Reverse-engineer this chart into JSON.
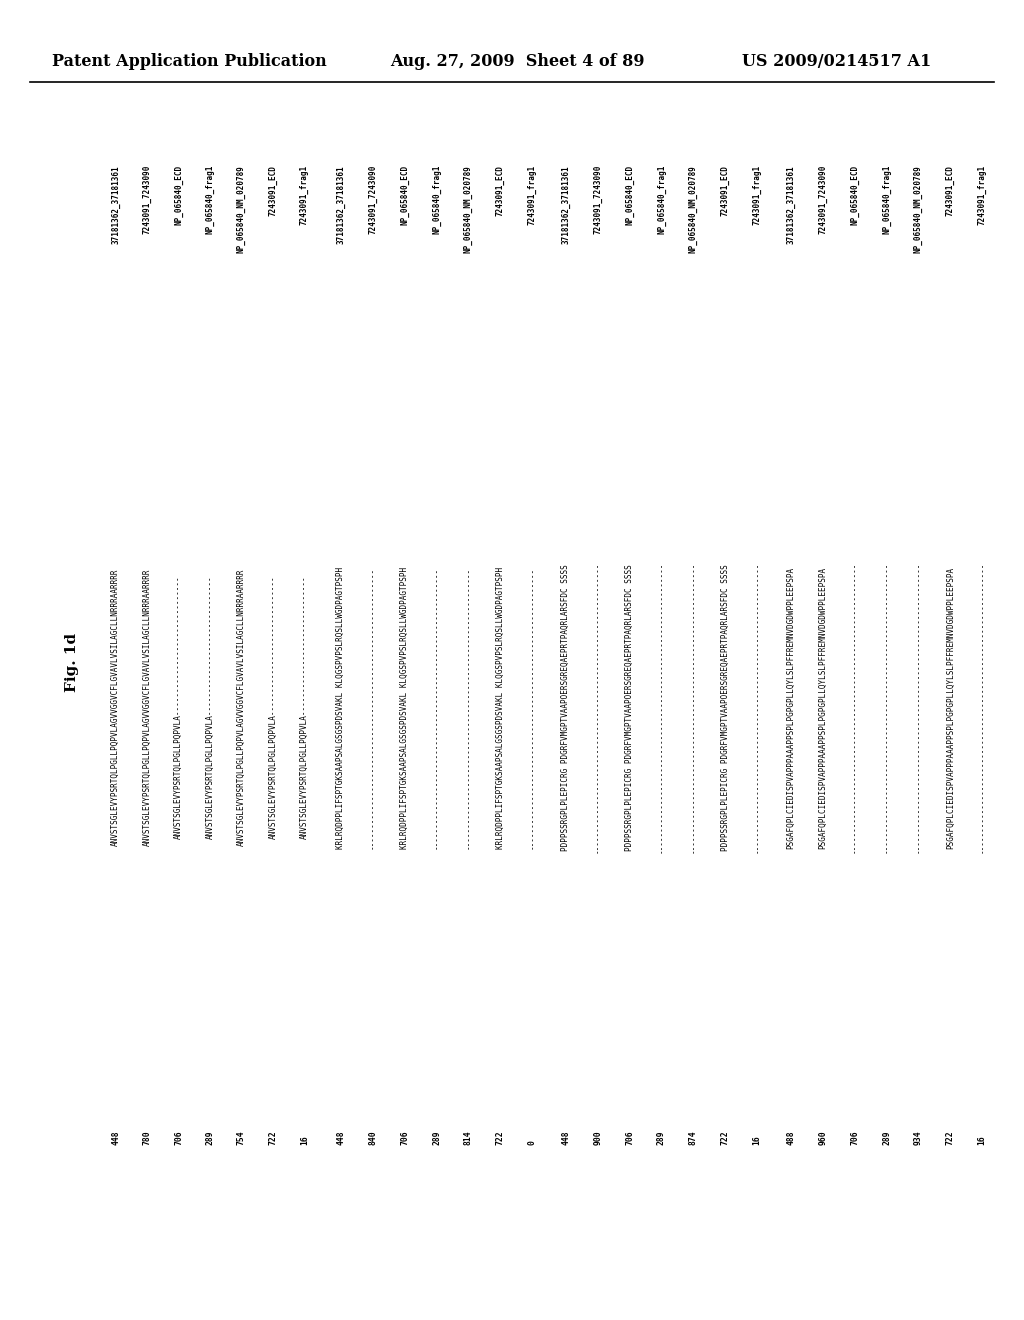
{
  "header_left": "Patent Application Publication",
  "header_mid": "Aug. 27, 2009  Sheet 4 of 89",
  "header_right": "US 2009/0214517 A1",
  "fig_label": "Fig. 1d",
  "background_color": "#ffffff",
  "header_fontsize": 11.5,
  "blocks": [
    {
      "ids": [
        "37181362_37181361",
        "7243091_7243090",
        "NP_065840_ECD",
        "NP_065840_frag1",
        "NP_065840_NM_020789",
        "7243091_ECD",
        "7243091_frag1"
      ],
      "seqs": [
        "ANVSTSGLEVYPSRTQLPGLLPQPVLAGVVGGVCFLGVAVLVSILAGCLLNRRRAARRRR",
        "ANVSTSGLEVYPSRTQLPGLLPQPVLAGVVGGVCFLGVAVLVSILAGCLLNRRRAARRRR",
        "ANVSTSGLEVYPSRTQLPGLLPQPVLA------------------------------",
        "ANVSTSGLEVYPSRTQLPGLLPQPVLA------------------------------",
        "ANVSTSGLEVYPSRTQLPGLLPQPVLAGVVGGVCFLGVAVLVSILAGCLLNRRRAARRRR",
        "ANVSTSGLEVYPSRTQLPGLLPQPVLA------------------------------",
        "ANVSTSGLEVYPSRTQLPGLLPQPVLA------------------------------"
      ],
      "nums": [
        "448",
        "780",
        "706",
        "289",
        "754",
        "722",
        "16"
      ]
    },
    {
      "ids": [
        "37181362_37181361",
        "7243091_7243090",
        "NP_065840_ECD",
        "NP_065840_frag1",
        "NP_065840_NM_020789",
        "7243091_ECD",
        "7243091_frag1"
      ],
      "seqs": [
        "KRLRQDPPLIFSPTGKSAAPSALGSGSPDSVAKL KLQGSPVPSLRQSLLWGDPAGTPSPH",
        "-------------------------------------------------------------",
        "KRLRQDPPLIFSPTGKSAAPSALGSGSPDSVAKL KLQGSPVPSLRQSLLWGDPAGTPSPH",
        "-------------------------------------------------------------",
        "-------------------------------------------------------------",
        "KRLRQDPPLIFSPTGKSAAPSALGSGSPDSVAKL KLQGSPVPSLRQSLLWGDPAGTPSPH",
        "-------------------------------------------------------------"
      ],
      "nums": [
        "448",
        "840",
        "706",
        "289",
        "814",
        "722",
        "0"
      ]
    },
    {
      "ids": [
        "37181362_37181361",
        "7243091_7243090",
        "NP_065840_ECD",
        "NP_065840_frag1",
        "NP_065840_NM_020789",
        "7243091_ECD",
        "7243091_frag1"
      ],
      "seqs": [
        "PDPPSSRGPLPLEPICRG PDGRFVMGPTVAAPOERSGREQAEPRTPAQRLARSFDC SSSS",
        "---------------------------------------------------------------",
        "PDPPSSRGPLPLEPICRG PDGRFVMGPTVAAPOERSGREQAEPRTPAQRLARSFDC SSSS",
        "---------------------------------------------------------------",
        "---------------------------------------------------------------",
        "PDPPSSRGPLPLEPICRG PDGRFVMGPTVAAPOERSGREQAEPRTPAQRLARSFDC SSSS",
        "---------------------------------------------------------------"
      ],
      "nums": [
        "448",
        "900",
        "706",
        "289",
        "874",
        "722",
        "16"
      ]
    },
    {
      "ids": [
        "37181362_37181361",
        "7243091_7243090",
        "NP_065840_ECD",
        "NP_065840_frag1",
        "NP_065840_NM_020789",
        "7243091_ECD",
        "7243091_frag1"
      ],
      "seqs": [
        "PSGAFQPLCIEDISPVAPPPAAAPPSPLPGPGPLLQYLSLPFFREMNVDGDWPPLEEPSPA",
        "PSGAFQPLCIEDISPVAPPPAAAPPSPLPGPGPLLQYLSLPFFREMNVDGDWPPLEEPSPA",
        "---------------------------------------------------------------",
        "---------------------------------------------------------------",
        "---------------------------------------------------------------",
        "PSGAFQPLCIEDISPVAPPPAAAPPSPLPGPGPLLQYLSLPFFREMNVDGDWPPLEEPSPA",
        "---------------------------------------------------------------"
      ],
      "nums": [
        "488",
        "960",
        "706",
        "289",
        "934",
        "722",
        "16"
      ]
    }
  ]
}
